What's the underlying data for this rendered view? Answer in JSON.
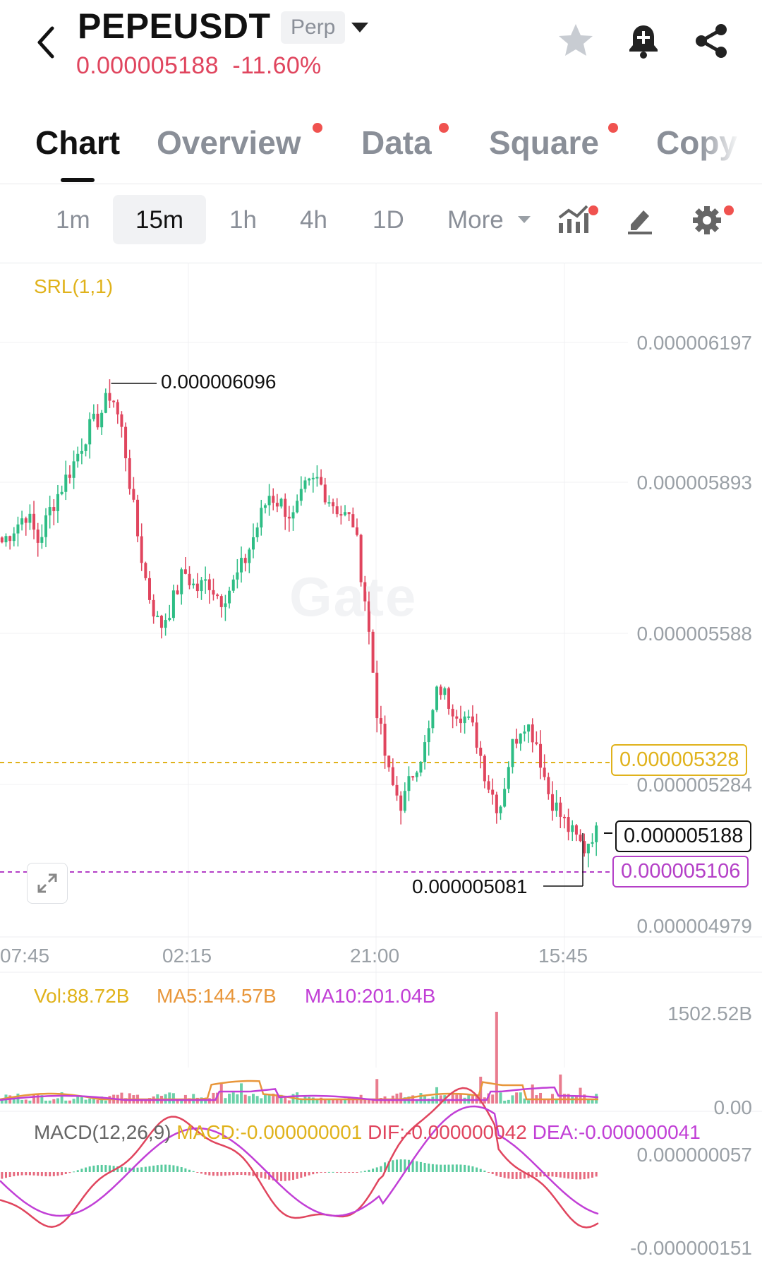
{
  "header": {
    "symbol": "PEPEUSDT",
    "contract_type": "Perp",
    "last_price": "0.000005188",
    "change_pct": "-11.60%",
    "icons": [
      "back-icon",
      "star-icon",
      "bell-add-icon",
      "share-icon"
    ]
  },
  "tabs": [
    {
      "label": "Chart",
      "active": true
    },
    {
      "label": "Overview",
      "dot": true
    },
    {
      "label": "Data",
      "dot": true
    },
    {
      "label": "Square",
      "dot": true
    },
    {
      "label": "Copy"
    }
  ],
  "intervals": [
    "1m",
    "15m",
    "1h",
    "4h",
    "1D",
    "More"
  ],
  "selected_interval": "15m",
  "toolbar_icons": [
    "indicators-icon",
    "draw-icon",
    "settings-icon"
  ],
  "main_chart": {
    "indicator_label": "SRL(1,1)",
    "watermark": "Gate",
    "price_axis": [
      "0.000006197",
      "0.000005893",
      "0.000005588",
      "0.000005284",
      "0.000004979"
    ],
    "time_axis": [
      "07:45",
      "02:15",
      "21:00",
      "15:45"
    ],
    "high_label": "0.000006096",
    "low_label": "0.000005081",
    "srl_line": "0.000005328",
    "current_price": "0.000005188",
    "lower_line": "0.000005106"
  },
  "volume": {
    "vol": "Vol:88.72B",
    "ma5": "MA5:144.57B",
    "ma10": "MA10:201.04B",
    "axis_top": "1502.52B",
    "axis_bottom": "0.00"
  },
  "macd": {
    "title": "MACD(12,26,9)",
    "macd": "MACD:-0.000000001",
    "dif": "DIF:-0.000000042",
    "dea": "DEA:-0.000000041",
    "axis_top": "0.000000057",
    "axis_bottom": "-0.000000151"
  },
  "colors": {
    "up": "#2ebd85",
    "down": "#e0455e",
    "srl": "#e0b21b",
    "ma5": "#e8963a",
    "ma10": "#c13fd6",
    "price_red": "#e0455e"
  },
  "chart_data": {
    "type": "candlestick",
    "interval": "15m",
    "price_range": [
      4.979e-06,
      6.197e-06
    ],
    "close_path": [
      5.78e-06,
      5.81e-06,
      5.84e-06,
      5.78e-06,
      5.85e-06,
      5.9e-06,
      5.95e-06,
      6.01e-06,
      6.04e-06,
      6.096e-06,
      6e-06,
      5.82e-06,
      5.68e-06,
      5.6e-06,
      5.65e-06,
      5.72e-06,
      5.68e-06,
      5.7e-06,
      5.66e-06,
      5.69e-06,
      5.74e-06,
      5.81e-06,
      5.88e-06,
      5.86e-06,
      5.83e-06,
      5.89e-06,
      5.91e-06,
      5.87e-06,
      5.84e-06,
      5.82e-06,
      5.65e-06,
      5.41e-06,
      5.28e-06,
      5.23e-06,
      5.31e-06,
      5.36e-06,
      5.48e-06,
      5.44e-06,
      5.42e-06,
      5.38e-06,
      5.28e-06,
      5.22e-06,
      5.35e-06,
      5.41e-06,
      5.37e-06,
      5.26e-06,
      5.21e-06,
      5.17e-06,
      5.14e-06,
      5.188e-06
    ]
  }
}
